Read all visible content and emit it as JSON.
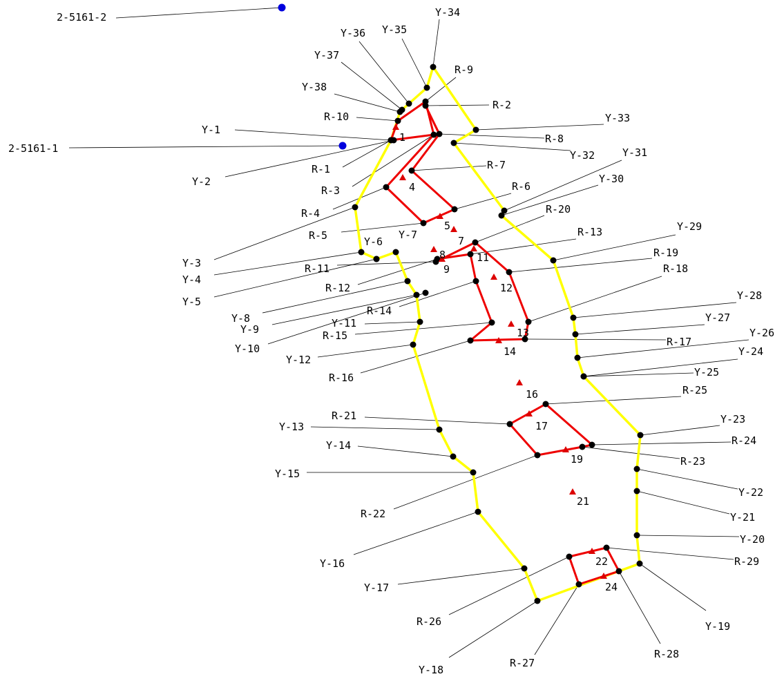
{
  "colors": {
    "boundary": "#ffff00",
    "red_polygon": "#ee0000",
    "survey_point": "#000000",
    "control_point": "#0000dd",
    "marker": "#dd0000"
  },
  "control_labels": [
    "2-5161-2",
    "2-5161-1"
  ],
  "y_labels": [
    "Y-1",
    "Y-2",
    "Y-3",
    "Y-4",
    "Y-5",
    "Y-6",
    "Y-7",
    "Y-8",
    "Y-9",
    "Y-10",
    "Y-11",
    "Y-12",
    "Y-13",
    "Y-14",
    "Y-15",
    "Y-16",
    "Y-17",
    "Y-18",
    "Y-19",
    "Y-20",
    "Y-21",
    "Y-22",
    "Y-23",
    "Y-24",
    "Y-25",
    "Y-26",
    "Y-27",
    "Y-28",
    "Y-29",
    "Y-30",
    "Y-31",
    "Y-32",
    "Y-33",
    "Y-34",
    "Y-35",
    "Y-36",
    "Y-37",
    "Y-38"
  ],
  "r_labels": [
    "R-1",
    "R-2",
    "R-3",
    "R-4",
    "R-5",
    "R-6",
    "R-7",
    "R-8",
    "R-9",
    "R-10",
    "R-11",
    "R-12",
    "R-13",
    "R-14",
    "R-15",
    "R-16",
    "R-17",
    "R-18",
    "R-19",
    "R-20",
    "R-21",
    "R-22",
    "R-23",
    "R-24",
    "R-25",
    "R-26",
    "R-27",
    "R-28",
    "R-29"
  ],
  "marker_labels": [
    "1",
    "4",
    "5",
    "7",
    "8",
    "9",
    "11",
    "12",
    "13",
    "14",
    "16",
    "17",
    "19",
    "21",
    "22",
    "24"
  ]
}
